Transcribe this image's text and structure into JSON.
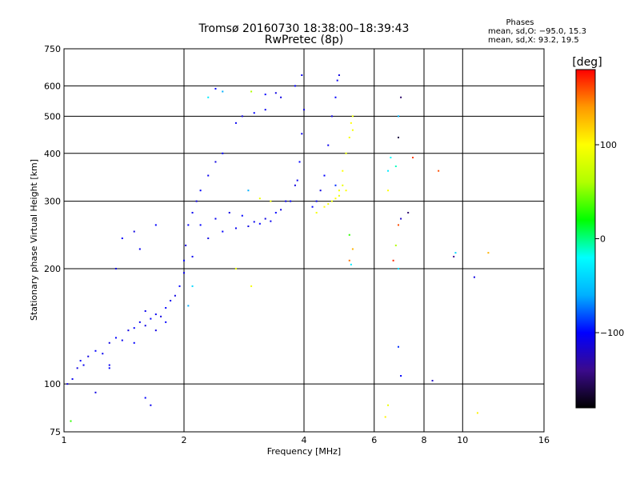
{
  "chart_data": {
    "type": "scatter",
    "title": "Tromsø 20160730 18:38:00–18:39:43",
    "subtitle": "RwPretec (8p)",
    "xlabel": "Frequency [MHz]",
    "ylabel": "Stationary phase Virtual Height [km]",
    "x_scale": "log2",
    "y_scale": "log",
    "xlim": [
      1,
      16
    ],
    "ylim": [
      75,
      750
    ],
    "x_ticks": [
      1,
      2,
      4,
      6,
      8,
      10,
      16
    ],
    "x_tick_labels": [
      "1",
      "2",
      "4",
      "6",
      "8",
      "10",
      "16"
    ],
    "y_ticks": [
      75,
      100,
      200,
      300,
      400,
      500,
      600,
      750
    ],
    "y_tick_labels": [
      "75",
      "100",
      "200",
      "300",
      "400",
      "500",
      "600",
      "750"
    ],
    "grid": true,
    "phase_header": {
      "title": "Phases",
      "line1": "mean, sd,O: −95.0, 15.3",
      "line2": "mean, sd,X:  93.2, 19.5"
    },
    "colorbar": {
      "label": "[deg]",
      "range": [
        -180,
        180
      ],
      "ticks": [
        100,
        0,
        -100
      ],
      "tick_labels": [
        "100",
        "0",
        "−100"
      ],
      "stops": [
        "#000000",
        "#3b0a8c",
        "#0000ff",
        "#00b0ff",
        "#00ffff",
        "#00ff00",
        "#b0ff00",
        "#ffff00",
        "#ff9900",
        "#ff0000"
      ]
    },
    "series": [
      {
        "name": "",
        "points": [
          [
            1.02,
            100,
            -110
          ],
          [
            1.05,
            103,
            -105
          ],
          [
            1.08,
            110,
            -110
          ],
          [
            1.1,
            115,
            -100
          ],
          [
            1.12,
            112,
            -105
          ],
          [
            1.15,
            118,
            -110
          ],
          [
            1.2,
            122,
            -100
          ],
          [
            1.25,
            120,
            -105
          ],
          [
            1.3,
            128,
            -110
          ],
          [
            1.35,
            132,
            -100
          ],
          [
            1.4,
            130,
            -105
          ],
          [
            1.45,
            138,
            -110
          ],
          [
            1.5,
            140,
            -100
          ],
          [
            1.55,
            145,
            -105
          ],
          [
            1.6,
            142,
            -110
          ],
          [
            1.65,
            148,
            -100
          ],
          [
            1.7,
            152,
            -105
          ],
          [
            1.75,
            150,
            -110
          ],
          [
            1.8,
            158,
            -100
          ],
          [
            1.85,
            165,
            -105
          ],
          [
            1.9,
            170,
            -110
          ],
          [
            1.95,
            180,
            -100
          ],
          [
            2.0,
            195,
            -105
          ],
          [
            2.02,
            230,
            -110
          ],
          [
            2.05,
            260,
            -100
          ],
          [
            2.1,
            280,
            -105
          ],
          [
            2.15,
            300,
            -110
          ],
          [
            2.2,
            320,
            -100
          ],
          [
            2.3,
            350,
            -105
          ],
          [
            2.4,
            380,
            -110
          ],
          [
            2.5,
            400,
            -100
          ],
          [
            2.7,
            480,
            -105
          ],
          [
            2.8,
            500,
            -110
          ],
          [
            3.0,
            510,
            -100
          ],
          [
            3.2,
            520,
            -105
          ],
          [
            3.5,
            560,
            -110
          ],
          [
            3.8,
            600,
            -100
          ],
          [
            3.95,
            640,
            -105
          ],
          [
            2.2,
            260,
            -100
          ],
          [
            2.4,
            270,
            -105
          ],
          [
            2.6,
            280,
            -110
          ],
          [
            2.8,
            275,
            -100
          ],
          [
            3.0,
            265,
            -105
          ],
          [
            3.2,
            270,
            -110
          ],
          [
            3.4,
            280,
            -100
          ],
          [
            3.6,
            300,
            -105
          ],
          [
            3.8,
            330,
            -110
          ],
          [
            3.9,
            380,
            -100
          ],
          [
            3.95,
            450,
            -105
          ],
          [
            4.0,
            520,
            -110
          ],
          [
            4.2,
            290,
            -100
          ],
          [
            4.3,
            300,
            -105
          ],
          [
            4.4,
            320,
            -110
          ],
          [
            4.5,
            350,
            -100
          ],
          [
            4.6,
            420,
            -105
          ],
          [
            4.7,
            500,
            -110
          ],
          [
            4.8,
            560,
            -100
          ],
          [
            4.85,
            620,
            -105
          ],
          [
            4.9,
            640,
            -110
          ],
          [
            4.3,
            280,
            95
          ],
          [
            4.5,
            290,
            100
          ],
          [
            4.7,
            300,
            90
          ],
          [
            4.9,
            320,
            95
          ],
          [
            5.0,
            360,
            100
          ],
          [
            5.1,
            400,
            90
          ],
          [
            5.2,
            440,
            95
          ],
          [
            5.25,
            480,
            100
          ],
          [
            5.3,
            500,
            90
          ],
          [
            5.3,
            460,
            95
          ],
          [
            5.1,
            320,
            100
          ],
          [
            4.9,
            310,
            90
          ],
          [
            4.6,
            295,
            95
          ],
          [
            4.8,
            305,
            100
          ],
          [
            5.0,
            330,
            90
          ],
          [
            1.3,
            112,
            -105
          ],
          [
            1.5,
            128,
            -100
          ],
          [
            1.7,
            138,
            -110
          ],
          [
            1.6,
            155,
            -105
          ],
          [
            1.8,
            145,
            -100
          ],
          [
            2.1,
            215,
            -105
          ],
          [
            2.3,
            240,
            -110
          ],
          [
            2.5,
            250,
            -100
          ],
          [
            2.7,
            255,
            -105
          ],
          [
            2.9,
            258,
            -110
          ],
          [
            3.1,
            262,
            -100
          ],
          [
            3.3,
            266,
            -105
          ],
          [
            3.5,
            285,
            -110
          ],
          [
            3.7,
            300,
            -100
          ],
          [
            3.85,
            340,
            -105
          ],
          [
            3.1,
            305,
            90
          ],
          [
            3.3,
            300,
            95
          ],
          [
            2.9,
            320,
            -60
          ],
          [
            2.95,
            180,
            95
          ],
          [
            2.7,
            200,
            90
          ],
          [
            1.04,
            80,
            30
          ],
          [
            1.2,
            95,
            -110
          ],
          [
            1.6,
            92,
            -100
          ],
          [
            1.65,
            88,
            -105
          ],
          [
            1.3,
            110,
            -100
          ],
          [
            1.4,
            240,
            -100
          ],
          [
            1.5,
            250,
            -110
          ],
          [
            1.55,
            225,
            -105
          ],
          [
            1.7,
            260,
            -100
          ],
          [
            1.35,
            200,
            -110
          ],
          [
            2.0,
            210,
            -100
          ],
          [
            2.05,
            160,
            -60
          ],
          [
            2.1,
            180,
            -40
          ],
          [
            2.5,
            580,
            -60
          ],
          [
            2.4,
            590,
            -100
          ],
          [
            2.3,
            560,
            -30
          ],
          [
            3.2,
            570,
            -100
          ],
          [
            3.4,
            575,
            -110
          ],
          [
            2.95,
            580,
            60
          ],
          [
            6.5,
            360,
            -30
          ],
          [
            6.6,
            390,
            -20
          ],
          [
            6.8,
            370,
            -10
          ],
          [
            6.9,
            500,
            -60
          ],
          [
            7.0,
            560,
            -150
          ],
          [
            6.9,
            440,
            -160
          ],
          [
            6.8,
            230,
            60
          ],
          [
            6.9,
            260,
            160
          ],
          [
            7.0,
            270,
            -120
          ],
          [
            7.3,
            280,
            -150
          ],
          [
            7.5,
            390,
            165
          ],
          [
            8.7,
            360,
            160
          ],
          [
            6.5,
            320,
            100
          ],
          [
            6.7,
            210,
            170
          ],
          [
            6.9,
            200,
            -40
          ],
          [
            6.9,
            125,
            -90
          ],
          [
            7.0,
            105,
            -100
          ],
          [
            8.4,
            102,
            -120
          ],
          [
            9.5,
            215,
            -140
          ],
          [
            9.6,
            220,
            -40
          ],
          [
            10.7,
            190,
            -110
          ],
          [
            11.6,
            220,
            130
          ],
          [
            10.9,
            84,
            105
          ],
          [
            6.5,
            88,
            90
          ],
          [
            6.4,
            82,
            105
          ],
          [
            5.2,
            245,
            30
          ],
          [
            5.3,
            225,
            130
          ],
          [
            5.2,
            210,
            150
          ],
          [
            5.25,
            205,
            -30
          ],
          [
            4.8,
            330,
            -90
          ]
        ]
      }
    ]
  }
}
